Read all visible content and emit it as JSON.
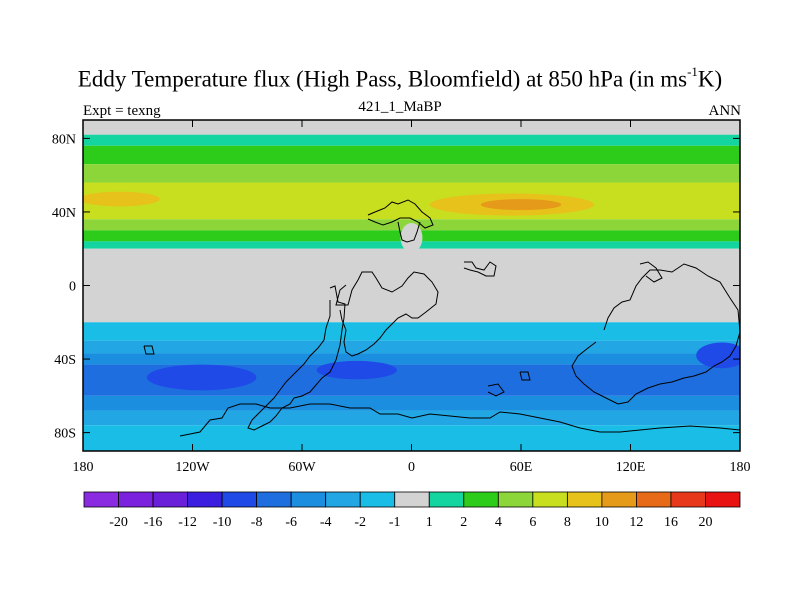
{
  "chart_data": {
    "type": "heatmap",
    "title_main": "Eddy Temperature flux (High Pass, Bloomfield) at 850 hPa (in ms",
    "title_sup": "-1",
    "title_end": "K)",
    "left_string": "Expt = texng",
    "center_string": "421_1_MaBP",
    "right_string": "ANN",
    "x_range": [
      -180,
      180
    ],
    "y_range": [
      -90,
      90
    ],
    "x_ticks": [
      {
        "value": -180,
        "label": "180"
      },
      {
        "value": -120,
        "label": "120W"
      },
      {
        "value": -60,
        "label": "60W"
      },
      {
        "value": 0,
        "label": "0"
      },
      {
        "value": 60,
        "label": "60E"
      },
      {
        "value": 120,
        "label": "120E"
      },
      {
        "value": 180,
        "label": "180"
      }
    ],
    "y_ticks": [
      {
        "value": 80,
        "label": "80N"
      },
      {
        "value": 40,
        "label": "40N"
      },
      {
        "value": 0,
        "label": "0"
      },
      {
        "value": -40,
        "label": "40S"
      },
      {
        "value": -80,
        "label": "80S"
      }
    ],
    "colorbar": {
      "levels": [
        "-20",
        "-16",
        "-12",
        "-10",
        "-8",
        "-6",
        "-4",
        "-2",
        "-1",
        "1",
        "2",
        "4",
        "6",
        "8",
        "10",
        "12",
        "16",
        "20"
      ],
      "colors": [
        "#8a2be2",
        "#7a22de",
        "#6a1fd8",
        "#3c1ee0",
        "#1f4ae8",
        "#1e6ee0",
        "#1c8ee0",
        "#22a6e4",
        "#19bde6",
        "#d3d3d3",
        "#14d4a0",
        "#2ecc1a",
        "#8cd63a",
        "#c8df20",
        "#e6c21a",
        "#e69a1a",
        "#e66a18",
        "#e8381c",
        "#e81212"
      ]
    },
    "bands": [
      {
        "lat_from": 90,
        "lat_to": 82,
        "value": 0
      },
      {
        "lat_from": 82,
        "lat_to": 76,
        "value": 1.5
      },
      {
        "lat_from": 76,
        "lat_to": 66,
        "value": 3
      },
      {
        "lat_from": 66,
        "lat_to": 56,
        "value": 5
      },
      {
        "lat_from": 56,
        "lat_to": 36,
        "value": 7
      },
      {
        "lat_from": 36,
        "lat_to": 30,
        "value": 5
      },
      {
        "lat_from": 30,
        "lat_to": 24,
        "value": 3
      },
      {
        "lat_from": 24,
        "lat_to": 20,
        "value": 1.5
      },
      {
        "lat_from": 20,
        "lat_to": -20,
        "value": 0
      },
      {
        "lat_from": -20,
        "lat_to": -30,
        "value": -1.5
      },
      {
        "lat_from": -30,
        "lat_to": -37,
        "value": -3
      },
      {
        "lat_from": -37,
        "lat_to": -43,
        "value": -5
      },
      {
        "lat_from": -43,
        "lat_to": -60,
        "value": -7
      },
      {
        "lat_from": -60,
        "lat_to": -68,
        "value": -5
      },
      {
        "lat_from": -68,
        "lat_to": -76,
        "value": -3
      },
      {
        "lat_from": -76,
        "lat_to": -90,
        "value": -1.5
      }
    ],
    "patches": [
      {
        "lon": 55,
        "lat": 44,
        "rlon": 45,
        "rlat": 6,
        "value": 9
      },
      {
        "lon": 60,
        "lat": 44,
        "rlon": 22,
        "rlat": 3,
        "value": 11
      },
      {
        "lon": -160,
        "lat": 47,
        "rlon": 22,
        "rlat": 4,
        "value": 8
      },
      {
        "lon": -115,
        "lat": -50,
        "rlon": 30,
        "rlat": 7,
        "value": -9
      },
      {
        "lon": -30,
        "lat": -46,
        "rlon": 22,
        "rlat": 5,
        "value": -9
      },
      {
        "lon": 170,
        "lat": -38,
        "rlon": 14,
        "rlat": 7,
        "value": -9
      },
      {
        "lon": 0,
        "lat": 26,
        "rlon": 6,
        "rlat": 8,
        "value": 0
      }
    ]
  }
}
